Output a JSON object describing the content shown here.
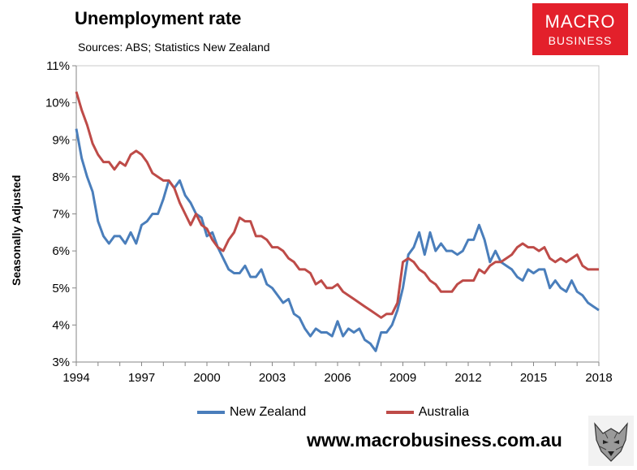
{
  "header": {
    "title": "Unemployment rate",
    "subtitle": "Sources: ABS; Statistics New Zealand",
    "logo_line1": "MACRO",
    "logo_line2": "BUSINESS",
    "logo_color": "#e3202b"
  },
  "footer": {
    "website": "www.macrobusiness.com.au",
    "mascot_icon": "wolf-icon"
  },
  "chart_data": {
    "type": "line",
    "title": "Unemployment rate",
    "ylabel": "Seasonally Adjusted",
    "xlabel": "",
    "xlim": [
      1994,
      2018
    ],
    "ylim": [
      3,
      11
    ],
    "x_ticks": [
      1994,
      1997,
      2000,
      2003,
      2006,
      2009,
      2012,
      2015,
      2018
    ],
    "y_ticks": [
      3,
      4,
      5,
      6,
      7,
      8,
      9,
      10,
      11
    ],
    "y_tick_labels": [
      "3%",
      "4%",
      "5%",
      "6%",
      "7%",
      "8%",
      "9%",
      "10%",
      "11%"
    ],
    "grid": false,
    "legend": "bottom",
    "series": [
      {
        "name": "New Zealand",
        "color": "#4a7ebb",
        "x": [
          1994.0,
          1994.25,
          1994.5,
          1994.75,
          1995.0,
          1995.25,
          1995.5,
          1995.75,
          1996.0,
          1996.25,
          1996.5,
          1996.75,
          1997.0,
          1997.25,
          1997.5,
          1997.75,
          1998.0,
          1998.25,
          1998.5,
          1998.75,
          1999.0,
          1999.25,
          1999.5,
          1999.75,
          2000.0,
          2000.25,
          2000.5,
          2000.75,
          2001.0,
          2001.25,
          2001.5,
          2001.75,
          2002.0,
          2002.25,
          2002.5,
          2002.75,
          2003.0,
          2003.25,
          2003.5,
          2003.75,
          2004.0,
          2004.25,
          2004.5,
          2004.75,
          2005.0,
          2005.25,
          2005.5,
          2005.75,
          2006.0,
          2006.25,
          2006.5,
          2006.75,
          2007.0,
          2007.25,
          2007.5,
          2007.75,
          2008.0,
          2008.25,
          2008.5,
          2008.75,
          2009.0,
          2009.25,
          2009.5,
          2009.75,
          2010.0,
          2010.25,
          2010.5,
          2010.75,
          2011.0,
          2011.25,
          2011.5,
          2011.75,
          2012.0,
          2012.25,
          2012.5,
          2012.75,
          2013.0,
          2013.25,
          2013.5,
          2013.75,
          2014.0,
          2014.25,
          2014.5,
          2014.75,
          2015.0,
          2015.25,
          2015.5,
          2015.75,
          2016.0,
          2016.25,
          2016.5,
          2016.75,
          2017.0,
          2017.25,
          2017.5,
          2017.75,
          2018.0
        ],
        "values": [
          9.3,
          8.5,
          8.0,
          7.6,
          6.8,
          6.4,
          6.2,
          6.4,
          6.4,
          6.2,
          6.5,
          6.2,
          6.7,
          6.8,
          7.0,
          7.0,
          7.4,
          7.9,
          7.7,
          7.9,
          7.5,
          7.3,
          7.0,
          6.9,
          6.4,
          6.5,
          6.1,
          5.8,
          5.5,
          5.4,
          5.4,
          5.6,
          5.3,
          5.3,
          5.5,
          5.1,
          5.0,
          4.8,
          4.6,
          4.7,
          4.3,
          4.2,
          3.9,
          3.7,
          3.9,
          3.8,
          3.8,
          3.7,
          4.1,
          3.7,
          3.9,
          3.8,
          3.9,
          3.6,
          3.5,
          3.3,
          3.8,
          3.8,
          4.0,
          4.4,
          5.0,
          5.9,
          6.1,
          6.5,
          5.9,
          6.5,
          6.0,
          6.2,
          6.0,
          6.0,
          5.9,
          6.0,
          6.3,
          6.3,
          6.7,
          6.3,
          5.7,
          6.0,
          5.7,
          5.6,
          5.5,
          5.3,
          5.2,
          5.5,
          5.4,
          5.5,
          5.5,
          5.0,
          5.2,
          5.0,
          4.9,
          5.2,
          4.9,
          4.8,
          4.6,
          4.5,
          4.4
        ]
      },
      {
        "name": "Australia",
        "color": "#be4b48",
        "x": [
          1994.0,
          1994.25,
          1994.5,
          1994.75,
          1995.0,
          1995.25,
          1995.5,
          1995.75,
          1996.0,
          1996.25,
          1996.5,
          1996.75,
          1997.0,
          1997.25,
          1997.5,
          1997.75,
          1998.0,
          1998.25,
          1998.5,
          1998.75,
          1999.0,
          1999.25,
          1999.5,
          1999.75,
          2000.0,
          2000.25,
          2000.5,
          2000.75,
          2001.0,
          2001.25,
          2001.5,
          2001.75,
          2002.0,
          2002.25,
          2002.5,
          2002.75,
          2003.0,
          2003.25,
          2003.5,
          2003.75,
          2004.0,
          2004.25,
          2004.5,
          2004.75,
          2005.0,
          2005.25,
          2005.5,
          2005.75,
          2006.0,
          2006.25,
          2006.5,
          2006.75,
          2007.0,
          2007.25,
          2007.5,
          2007.75,
          2008.0,
          2008.25,
          2008.5,
          2008.75,
          2009.0,
          2009.25,
          2009.5,
          2009.75,
          2010.0,
          2010.25,
          2010.5,
          2010.75,
          2011.0,
          2011.25,
          2011.5,
          2011.75,
          2012.0,
          2012.25,
          2012.5,
          2012.75,
          2013.0,
          2013.25,
          2013.5,
          2013.75,
          2014.0,
          2014.25,
          2014.5,
          2014.75,
          2015.0,
          2015.25,
          2015.5,
          2015.75,
          2016.0,
          2016.25,
          2016.5,
          2016.75,
          2017.0,
          2017.25,
          2017.5,
          2017.75,
          2018.0
        ],
        "values": [
          10.3,
          9.8,
          9.4,
          8.9,
          8.6,
          8.4,
          8.4,
          8.2,
          8.4,
          8.3,
          8.6,
          8.7,
          8.6,
          8.4,
          8.1,
          8.0,
          7.9,
          7.9,
          7.7,
          7.3,
          7.0,
          6.7,
          7.0,
          6.7,
          6.6,
          6.3,
          6.1,
          6.0,
          6.3,
          6.5,
          6.9,
          6.8,
          6.8,
          6.4,
          6.4,
          6.3,
          6.1,
          6.1,
          6.0,
          5.8,
          5.7,
          5.5,
          5.5,
          5.4,
          5.1,
          5.2,
          5.0,
          5.0,
          5.1,
          4.9,
          4.8,
          4.7,
          4.6,
          4.5,
          4.4,
          4.3,
          4.2,
          4.3,
          4.3,
          4.6,
          5.7,
          5.8,
          5.7,
          5.5,
          5.4,
          5.2,
          5.1,
          4.9,
          4.9,
          4.9,
          5.1,
          5.2,
          5.2,
          5.2,
          5.5,
          5.4,
          5.6,
          5.7,
          5.7,
          5.8,
          5.9,
          6.1,
          6.2,
          6.1,
          6.1,
          6.0,
          6.1,
          5.8,
          5.7,
          5.8,
          5.7,
          5.8,
          5.9,
          5.6,
          5.5,
          5.5,
          5.5
        ]
      }
    ]
  }
}
